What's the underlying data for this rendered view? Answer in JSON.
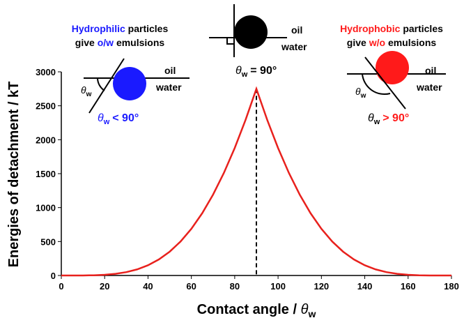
{
  "chart_data": {
    "type": "line",
    "x_label": {
      "text": "Contact angle /",
      "symbol": "θ",
      "subscript": "w"
    },
    "y_label": "Energies of detachment / kT",
    "x": [
      0,
      5,
      10,
      15,
      20,
      25,
      30,
      35,
      40,
      45,
      50,
      55,
      60,
      65,
      70,
      75,
      80,
      85,
      90,
      95,
      100,
      105,
      110,
      115,
      120,
      125,
      130,
      135,
      140,
      145,
      150,
      155,
      160,
      165,
      170,
      175,
      180
    ],
    "series": [
      {
        "color": "#e8211d",
        "values": [
          0,
          0.04,
          0.63,
          3.19,
          10.0,
          24.1,
          49.4,
          89.9,
          150.5,
          235.9,
          350.9,
          500.0,
          687.5,
          916.8,
          1190.6,
          1510.7,
          1877.8,
          2291.5,
          2750,
          2291.5,
          1877.8,
          1510.7,
          1190.6,
          916.8,
          687.5,
          500.0,
          350.9,
          235.9,
          150.5,
          89.9,
          49.4,
          24.1,
          10.0,
          3.19,
          0.63,
          0.04,
          0
        ]
      }
    ],
    "xlim": [
      0,
      180
    ],
    "ylim": [
      0,
      3000
    ],
    "xticks": [
      0,
      20,
      40,
      60,
      80,
      100,
      120,
      140,
      160,
      180
    ],
    "yticks": [
      0,
      500,
      1000,
      1500,
      2000,
      2500,
      3000
    ],
    "vline": 90,
    "annotations": {
      "left": {
        "line1": [
          "Hydrophilic",
          "particles"
        ],
        "line2": [
          "give",
          "o/w",
          "emulsions"
        ],
        "oil": "oil",
        "water": "water",
        "symbol": "θ",
        "subscript": "w",
        "condition": "< 90°"
      },
      "middle": {
        "oil": "oil",
        "water": "water",
        "symbol": "θ",
        "subscript": "w",
        "condition": "= 90°"
      },
      "right": {
        "line1": [
          "Hydrophobic",
          "particles"
        ],
        "line2": [
          "give",
          "w/o",
          "emulsions"
        ],
        "oil": "oil",
        "water": "water",
        "symbol": "θ",
        "subscript": "w",
        "condition": "> 90°"
      }
    }
  }
}
